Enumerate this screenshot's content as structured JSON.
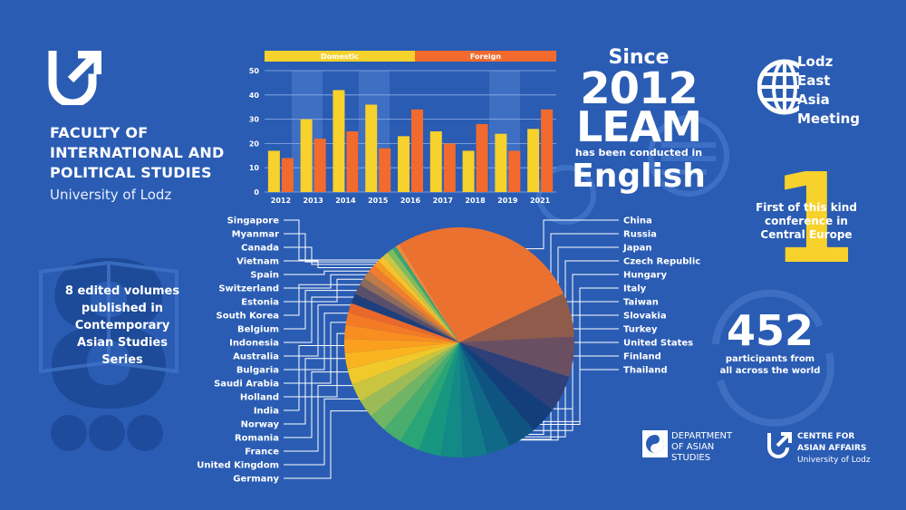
{
  "faculty": {
    "title_lines": [
      "FACULTY OF",
      "INTERNATIONAL AND",
      "POLITICAL STUDIES"
    ],
    "university": "University of Lodz"
  },
  "volumes_text": [
    "8 edited volumes",
    "published in",
    "Contemporary",
    "Asian Studies Series"
  ],
  "background_number": "8",
  "since": {
    "word": "Since",
    "year": "2012",
    "name": "LEAM",
    "text": "has been conducted in",
    "language": "English"
  },
  "leam_name": [
    "Lodz",
    "East",
    "Asia",
    "Meeting"
  ],
  "first": {
    "number": "1",
    "text": [
      "First of this kind",
      "conference in",
      "Central Europe"
    ]
  },
  "participants": {
    "number": "452",
    "text": [
      "participants from",
      "all across the world"
    ]
  },
  "department": [
    "DEPARTMENT",
    "OF ASIAN",
    "STUDIES"
  ],
  "centre": [
    "CENTRE FOR",
    "ASIAN AFFAIRS",
    "University of Lodz"
  ],
  "colors": {
    "background": "#2a5cb3",
    "domestic": "#f7d12c",
    "foreign": "#f26a2e"
  },
  "chart_data": [
    {
      "type": "bar",
      "categories": [
        "2012",
        "2013",
        "2014",
        "2015",
        "2016",
        "2017",
        "2018",
        "2019",
        "2021"
      ],
      "series": [
        {
          "name": "Domestic",
          "color": "#f7d12c",
          "values": [
            17,
            30,
            42,
            36,
            23,
            25,
            17,
            24,
            26
          ]
        },
        {
          "name": "Foreign",
          "color": "#f26a2e",
          "values": [
            14,
            22,
            25,
            18,
            34,
            20,
            28,
            17,
            34
          ]
        }
      ],
      "ylim": [
        0,
        50
      ],
      "yticks": [
        0,
        10,
        20,
        30,
        40,
        50
      ],
      "grid": true,
      "legend": "top"
    },
    {
      "type": "pie",
      "labels_right": [
        "China",
        "Russia",
        "Japan",
        "Czech Republic",
        "Hungary",
        "Italy",
        "Taiwan",
        "Slovakia",
        "Turkey",
        "United States",
        "Finland",
        "Thailand"
      ],
      "labels_left": [
        "Singapore",
        "Myanmar",
        "Canada",
        "Vietnam",
        "Spain",
        "Switzerland",
        "Estonia",
        "South Korea",
        "Belgium",
        "Indonesia",
        "Australia",
        "Bulgaria",
        "Saudi Arabia",
        "Holland",
        "India",
        "Norway",
        "Romania",
        "France",
        "United Kingdom",
        "Germany"
      ],
      "slices": [
        {
          "label": "China",
          "value": 95,
          "color": "#ea7130"
        },
        {
          "label": "Russia",
          "value": 22,
          "color": "#8f5b4a"
        },
        {
          "label": "Japan",
          "value": 20,
          "color": "#6a4f62"
        },
        {
          "label": "Czech Republic",
          "value": 18,
          "color": "#2f3f78"
        },
        {
          "label": "Hungary",
          "value": 14,
          "color": "#143e7a"
        },
        {
          "label": "Italy",
          "value": 14,
          "color": "#0f5480"
        },
        {
          "label": "Taiwan",
          "value": 12,
          "color": "#0e6a86"
        },
        {
          "label": "Slovakia",
          "value": 12,
          "color": "#117c87"
        },
        {
          "label": "Turkey",
          "value": 11,
          "color": "#138a86"
        },
        {
          "label": "United States",
          "value": 11,
          "color": "#17977f"
        },
        {
          "label": "Finland",
          "value": 10,
          "color": "#2aa576"
        },
        {
          "label": "Thailand",
          "value": 10,
          "color": "#48ad6d"
        },
        {
          "label": "Germany",
          "value": 9,
          "color": "#6fb565"
        },
        {
          "label": "United Kingdom",
          "value": 9,
          "color": "#9cbb57"
        },
        {
          "label": "France",
          "value": 9,
          "color": "#c9c53f"
        },
        {
          "label": "Romania",
          "value": 8,
          "color": "#f1c92a"
        },
        {
          "label": "Norway",
          "value": 8,
          "color": "#f9b420"
        },
        {
          "label": "India",
          "value": 7,
          "color": "#fb9f1e"
        },
        {
          "label": "Holland",
          "value": 7,
          "color": "#f88d20"
        },
        {
          "label": "Saudi Arabia",
          "value": 6,
          "color": "#f47a25"
        },
        {
          "label": "Bulgaria",
          "value": 5,
          "color": "#e9682a"
        },
        {
          "label": "Australia",
          "value": 5,
          "color": "#1e3f7c"
        },
        {
          "label": "Indonesia",
          "value": 5,
          "color": "#5a4f6a"
        },
        {
          "label": "Belgium",
          "value": 4,
          "color": "#8c6a5c"
        },
        {
          "label": "South Korea",
          "value": 4,
          "color": "#c07a47"
        },
        {
          "label": "Estonia",
          "value": 4,
          "color": "#f07d2d"
        },
        {
          "label": "Switzerland",
          "value": 3,
          "color": "#f79a22"
        },
        {
          "label": "Spain",
          "value": 3,
          "color": "#f7c22b"
        },
        {
          "label": "Vietnam",
          "value": 3,
          "color": "#c7c645"
        },
        {
          "label": "Canada",
          "value": 3,
          "color": "#80bb5e"
        },
        {
          "label": "Myanmar",
          "value": 2,
          "color": "#3aa572"
        },
        {
          "label": "Singapore",
          "value": 2,
          "color": "#f08a3a"
        }
      ]
    }
  ]
}
